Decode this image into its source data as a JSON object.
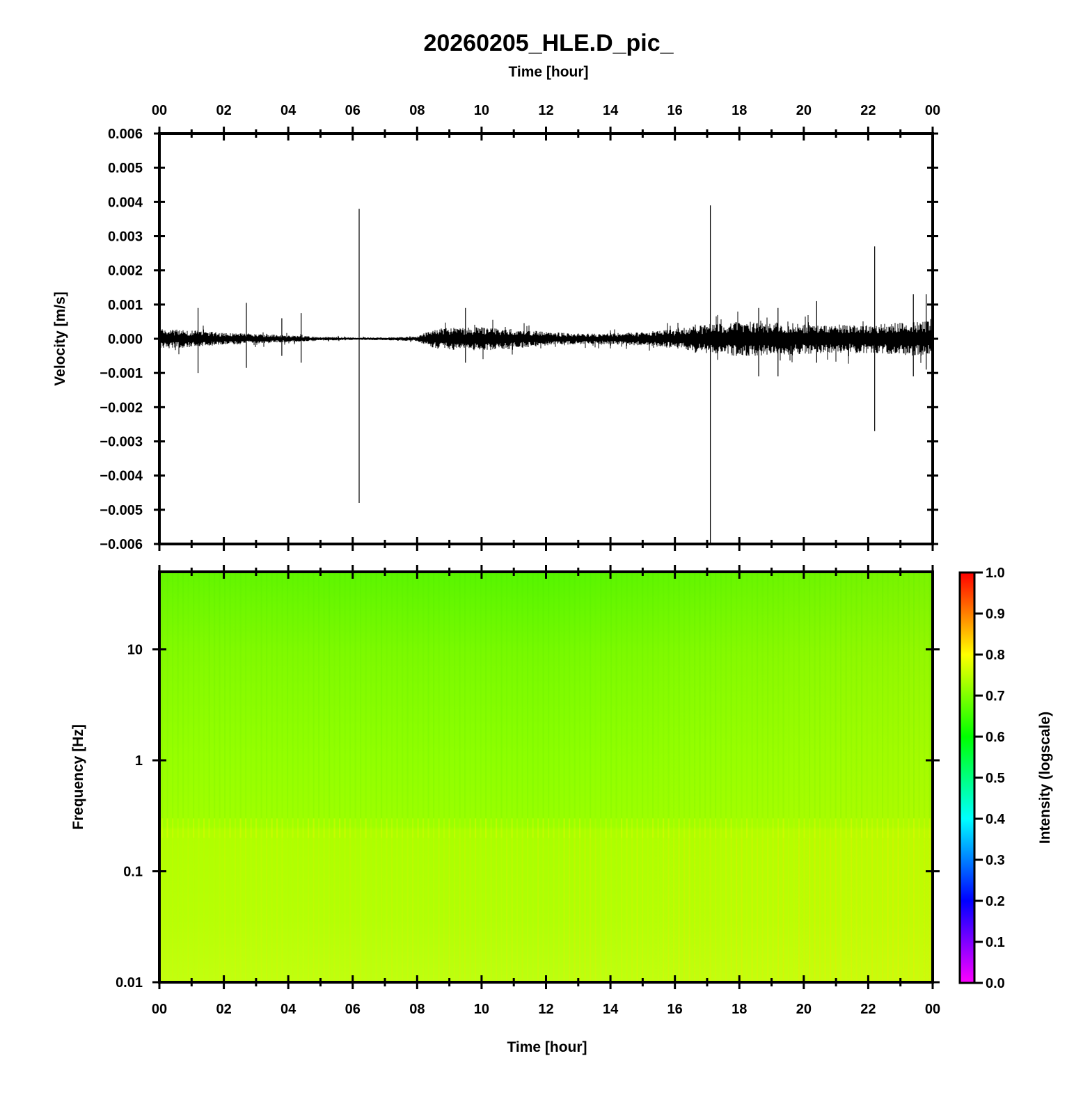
{
  "chart_data": [
    {
      "type": "line",
      "title": "20260205_HLE.D_pic_",
      "xlabel": "Time [hour]",
      "ylabel": "Velocity [m/s]",
      "x_tick_labels": [
        "00",
        "02",
        "04",
        "06",
        "08",
        "10",
        "12",
        "14",
        "16",
        "18",
        "20",
        "22",
        "00"
      ],
      "y_tick_labels": [
        "0.006",
        "0.005",
        "0.004",
        "0.003",
        "0.002",
        "0.001",
        "0.000",
        "−0.001",
        "−0.002",
        "−0.003",
        "−0.004",
        "−0.005",
        "−0.006"
      ],
      "xlim": [
        0,
        24
      ],
      "ylim": [
        -0.006,
        0.006
      ],
      "grid": false,
      "series": [
        {
          "color": "#000000",
          "noise_envelope": {
            "hours": [
              0,
              1,
              2,
              3,
              4,
              5,
              6,
              7,
              8,
              8.5,
              9,
              10,
              11,
              12,
              13,
              14,
              15,
              16,
              17,
              18,
              19,
              20,
              21,
              22,
              23,
              24
            ],
            "amplitude": [
              0.0003,
              0.00025,
              0.00018,
              0.00015,
              0.0001,
              6e-05,
              4e-05,
              4e-05,
              7e-05,
              0.0003,
              0.00032,
              0.00034,
              0.0003,
              0.0002,
              0.00016,
              0.00016,
              0.0002,
              0.00028,
              0.00042,
              0.00052,
              0.00048,
              0.00045,
              0.00042,
              0.00042,
              0.00048,
              0.00052
            ]
          },
          "spikes": [
            {
              "hour": 1.2,
              "max": 0.0009,
              "min": -0.001
            },
            {
              "hour": 2.7,
              "max": 0.00105,
              "min": -0.00085
            },
            {
              "hour": 3.8,
              "max": 0.0006,
              "min": -0.0005
            },
            {
              "hour": 4.4,
              "max": 0.00075,
              "min": -0.0007
            },
            {
              "hour": 6.2,
              "max": 0.0038,
              "min": -0.0048
            },
            {
              "hour": 9.5,
              "max": 0.0009,
              "min": -0.0007
            },
            {
              "hour": 17.1,
              "max": 0.0039,
              "min": -0.006
            },
            {
              "hour": 18.6,
              "max": 0.0009,
              "min": -0.0011
            },
            {
              "hour": 19.2,
              "max": 0.0009,
              "min": -0.0011
            },
            {
              "hour": 20.4,
              "max": 0.0011,
              "min": -0.0007
            },
            {
              "hour": 22.2,
              "max": 0.0027,
              "min": -0.0027
            },
            {
              "hour": 23.4,
              "max": 0.0013,
              "min": -0.0011
            },
            {
              "hour": 23.8,
              "max": 0.0013,
              "min": -0.0009
            }
          ]
        }
      ]
    },
    {
      "type": "heatmap",
      "xlabel": "Time [hour]",
      "ylabel": "Frequency [Hz]",
      "x_tick_labels": [
        "00",
        "02",
        "04",
        "06",
        "08",
        "10",
        "12",
        "14",
        "16",
        "18",
        "20",
        "22",
        "00"
      ],
      "y_tick_labels": [
        "10",
        "1",
        "0.1",
        "0.01"
      ],
      "y_tick_values": [
        10,
        1,
        0.1,
        0.01
      ],
      "y_scale": "log",
      "xlim": [
        0,
        24
      ],
      "ylim": [
        0.01,
        50
      ],
      "colorbar": {
        "label": "Intensity (logscale)",
        "range": [
          0.0,
          1.0
        ],
        "tick_labels": [
          "1.0",
          "0.9",
          "0.8",
          "0.7",
          "0.6",
          "0.5",
          "0.4",
          "0.3",
          "0.2",
          "0.1",
          "0.0"
        ],
        "colors": [
          "#ff00ff",
          "#0000ff",
          "#00ffff",
          "#00ff00",
          "#ffff00",
          "#ff0000"
        ]
      },
      "intensity_profile": {
        "frequency_hz": [
          50,
          10,
          1,
          0.3,
          0.2,
          0.1,
          0.01
        ],
        "intensity": [
          0.6,
          0.67,
          0.7,
          0.68,
          0.75,
          0.74,
          0.77
        ]
      }
    }
  ]
}
